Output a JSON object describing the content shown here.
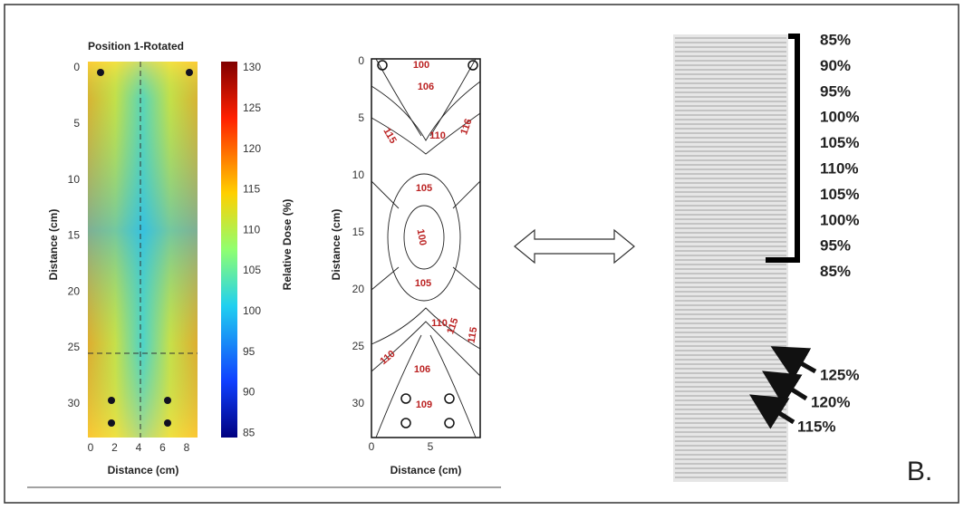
{
  "left_panel": {
    "title": "Position 1-Rotated",
    "x_axis_label": "Distance (cm)",
    "y_axis_label": "Distance (cm)",
    "x_ticks": [
      "0",
      "2",
      "4",
      "6",
      "8"
    ],
    "y_ticks": [
      "0",
      "5",
      "10",
      "15",
      "20",
      "25",
      "30"
    ],
    "colorbar_label": "Relative Dose (%)",
    "colorbar_ticks": [
      "130",
      "125",
      "120",
      "115",
      "110",
      "105",
      "100",
      "95",
      "90",
      "85"
    ]
  },
  "middle_panel": {
    "x_axis_label": "Distance (cm)",
    "y_axis_label": "Distance (cm)",
    "x_ticks": [
      "0",
      "5"
    ],
    "y_ticks": [
      "0",
      "5",
      "10",
      "15",
      "20",
      "25",
      "30"
    ],
    "contour_labels": [
      "100",
      "106",
      "115",
      "116",
      "110",
      "105",
      "100",
      "105",
      "110",
      "115",
      "115",
      "110",
      "106",
      "109"
    ]
  },
  "right_panel": {
    "percent_labels": [
      "85%",
      "90%",
      "95%",
      "100%",
      "105%",
      "110%",
      "105%",
      "100%",
      "95%",
      "85%"
    ],
    "arrow_labels": [
      "125%",
      "120%",
      "115%"
    ],
    "panel_label": "B."
  }
}
